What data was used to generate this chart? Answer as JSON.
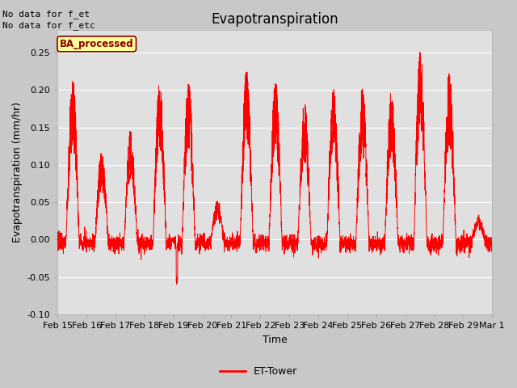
{
  "title": "Evapotranspiration",
  "ylabel": "Evapotranspiration (mm/hr)",
  "xlabel": "Time",
  "ylim": [
    -0.1,
    0.28
  ],
  "yticks": [
    -0.1,
    -0.05,
    0.0,
    0.05,
    0.1,
    0.15,
    0.2,
    0.25
  ],
  "fig_bg_color": "#c8c8c8",
  "plot_bg_color": "#e0e0e0",
  "line_color": "#ff0000",
  "grid_color": "#ffffff",
  "title_fontsize": 12,
  "axis_label_fontsize": 9,
  "tick_fontsize": 8,
  "text_annotations": [
    "No data for f_et",
    "No data for f_etc"
  ],
  "legend_label": "ET-Tower",
  "box_label": "BA_processed",
  "box_bg": "#ffff99",
  "box_border": "#8b0000",
  "xtick_labels": [
    "Feb 15",
    "Feb 16",
    "Feb 17",
    "Feb 18",
    "Feb 19",
    "Feb 20",
    "Feb 21",
    "Feb 22",
    "Feb 23",
    "Feb 24",
    "Feb 25",
    "Feb 26",
    "Feb 27",
    "Feb 28",
    "Feb 29",
    "Mar 1"
  ],
  "num_points": 3360,
  "num_days": 15,
  "peak_heights": [
    0.215,
    0.115,
    0.145,
    0.21,
    0.21,
    0.05,
    0.225,
    0.21,
    0.18,
    0.205,
    0.2,
    0.195,
    0.25,
    0.22,
    0.03
  ],
  "neg_spike_day": 4,
  "neg_spike_val": -0.055
}
